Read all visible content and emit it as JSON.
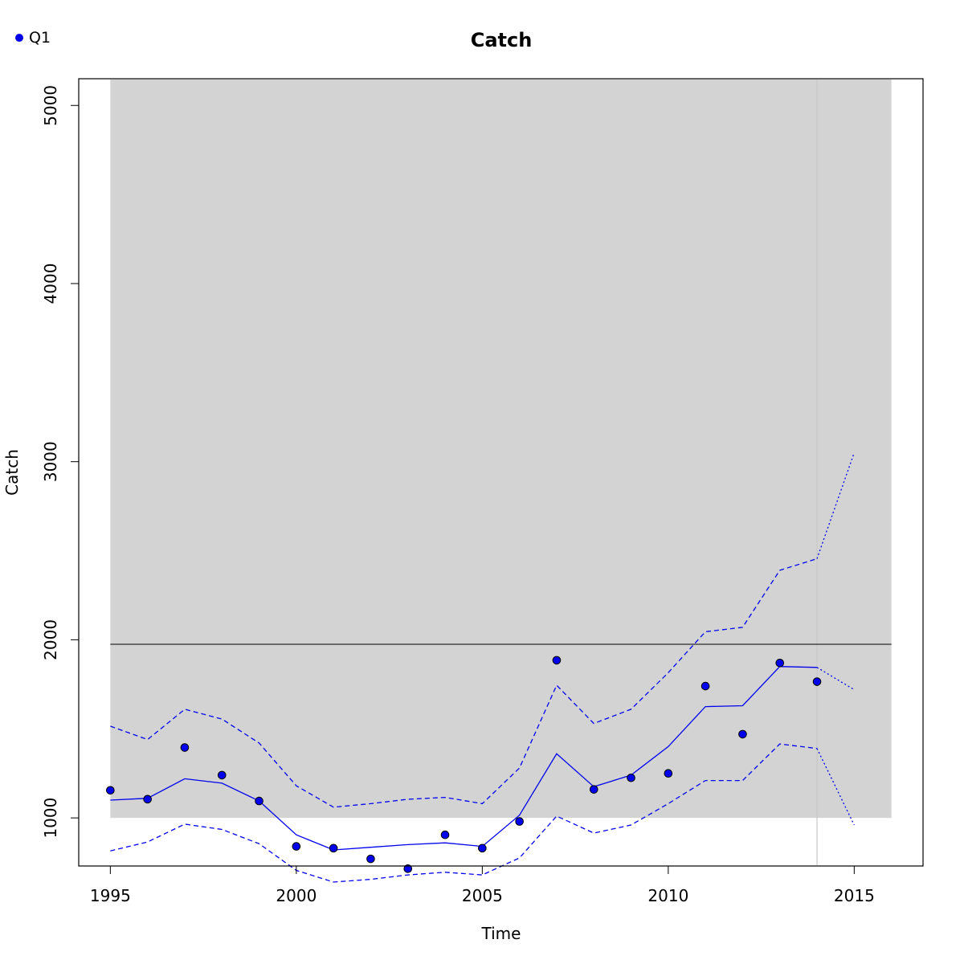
{
  "chart_data": {
    "type": "line",
    "title": "Catch",
    "xlabel": "Time",
    "ylabel": "Catch",
    "xlim": [
      1994.15,
      2016.85
    ],
    "ylim": [
      730,
      5150
    ],
    "x_ticks": [
      1995,
      2000,
      2005,
      2010,
      2015
    ],
    "y_ticks": [
      1000,
      2000,
      3000,
      4000,
      5000
    ],
    "grid": false,
    "legend": {
      "position": "top-left",
      "entries": [
        {
          "label": "Q1",
          "color": "#0000ee"
        }
      ]
    },
    "shaded_region": {
      "x": [
        1995,
        2016
      ],
      "y": [
        1000,
        5150
      ],
      "color": "#d3d3d3"
    },
    "reference_line_y": 1975,
    "vertical_line_x": 2014,
    "series": [
      {
        "name": "Q1",
        "kind": "observed",
        "color": "#0000ee",
        "x": [
          1995,
          1996,
          1997,
          1998,
          1999,
          2000,
          2001,
          2002,
          2003,
          2004,
          2005,
          2006,
          2007,
          2008,
          2009,
          2010,
          2011,
          2012,
          2013,
          2014
        ],
        "values": [
          1155,
          1105,
          1395,
          1240,
          1095,
          840,
          830,
          770,
          715,
          905,
          830,
          980,
          1885,
          1160,
          1225,
          1250,
          1740,
          1470,
          1870,
          1765
        ]
      },
      {
        "kind": "fit",
        "color": "#0000ee",
        "x": [
          1995,
          1996,
          1997,
          1998,
          1999,
          2000,
          2001,
          2002,
          2003,
          2004,
          2005,
          2006,
          2007,
          2008,
          2009,
          2010,
          2011,
          2012,
          2013,
          2014
        ],
        "values": [
          1100,
          1110,
          1220,
          1195,
          1095,
          905,
          820,
          835,
          850,
          860,
          840,
          1015,
          1360,
          1175,
          1240,
          1400,
          1625,
          1630,
          1850,
          1845
        ]
      },
      {
        "kind": "fit-upper",
        "color": "#0000ee",
        "x": [
          1995,
          1996,
          1997,
          1998,
          1999,
          2000,
          2001,
          2002,
          2003,
          2004,
          2005,
          2006,
          2007,
          2008,
          2009,
          2010,
          2011,
          2012,
          2013,
          2014
        ],
        "values": [
          1515,
          1440,
          1610,
          1555,
          1420,
          1180,
          1060,
          1080,
          1105,
          1115,
          1080,
          1280,
          1745,
          1530,
          1610,
          1815,
          2045,
          2070,
          2390,
          2455
        ]
      },
      {
        "kind": "fit-lower",
        "color": "#0000ee",
        "x": [
          1995,
          1996,
          1997,
          1998,
          1999,
          2000,
          2001,
          2002,
          2003,
          2004,
          2005,
          2006,
          2007,
          2008,
          2009,
          2010,
          2011,
          2012,
          2013,
          2014
        ],
        "values": [
          815,
          865,
          965,
          935,
          855,
          705,
          640,
          655,
          680,
          695,
          680,
          775,
          1010,
          915,
          960,
          1080,
          1210,
          1210,
          1415,
          1390
        ]
      },
      {
        "kind": "forecast",
        "color": "#0000ee",
        "x": [
          2014,
          2015
        ],
        "values": [
          1845,
          1720
        ]
      },
      {
        "kind": "forecast-upper",
        "color": "#0000ee",
        "x": [
          2014,
          2015
        ],
        "values": [
          2455,
          3050
        ]
      },
      {
        "kind": "forecast-lower",
        "color": "#0000ee",
        "x": [
          2014,
          2015
        ],
        "values": [
          1390,
          960
        ]
      }
    ]
  }
}
